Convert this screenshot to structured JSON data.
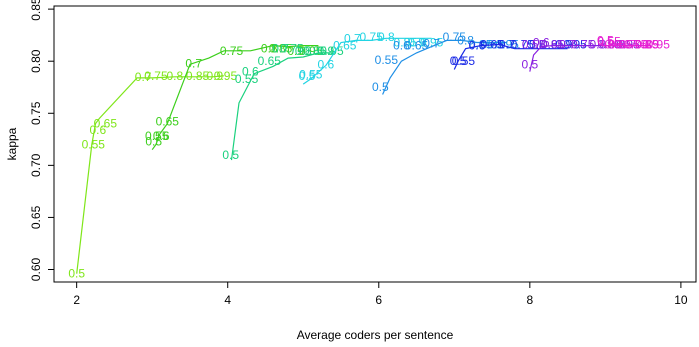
{
  "chart_data": {
    "type": "line",
    "title": "",
    "xlabel": "Average coders per sentence",
    "ylabel": "kappa",
    "xlim": [
      1.7,
      10.2
    ],
    "ylim": [
      0.588,
      0.853
    ],
    "xticks": [
      2,
      4,
      6,
      8,
      10
    ],
    "yticks": [
      0.6,
      0.65,
      0.7,
      0.75,
      0.8,
      0.85
    ],
    "grid": false,
    "legend": "none",
    "series": [
      {
        "color": "#7fe619",
        "points": [
          [
            2.0,
            0.596
          ],
          [
            2.2,
            0.72
          ],
          [
            2.25,
            0.74
          ],
          [
            2.3,
            0.745
          ],
          [
            2.8,
            0.784
          ],
          [
            3.0,
            0.784
          ],
          [
            3.3,
            0.785
          ],
          [
            3.6,
            0.785
          ],
          [
            3.8,
            0.785
          ],
          [
            3.95,
            0.786
          ]
        ],
        "labels": [
          [
            2.0,
            0.596,
            "0.5"
          ],
          [
            2.22,
            0.72,
            "0.55"
          ],
          [
            2.28,
            0.734,
            "0.6"
          ],
          [
            2.38,
            0.74,
            "0.65"
          ],
          [
            2.88,
            0.785,
            "0.7"
          ],
          [
            3.05,
            0.786,
            "0.75"
          ],
          [
            3.3,
            0.786,
            "0.8"
          ],
          [
            3.6,
            0.786,
            "0.85"
          ],
          [
            3.83,
            0.786,
            "0.9"
          ],
          [
            3.97,
            0.786,
            "0.95"
          ]
        ]
      },
      {
        "color": "#3ccf1c",
        "points": [
          [
            3.0,
            0.715
          ],
          [
            3.05,
            0.72
          ],
          [
            3.1,
            0.73
          ],
          [
            3.2,
            0.74
          ],
          [
            3.5,
            0.797
          ],
          [
            3.75,
            0.803
          ],
          [
            3.95,
            0.81
          ],
          [
            4.3,
            0.81
          ],
          [
            4.6,
            0.815
          ],
          [
            4.8,
            0.814
          ],
          [
            5.0,
            0.815
          ],
          [
            5.2,
            0.815
          ]
        ],
        "labels": [
          [
            3.02,
            0.723,
            "0.5"
          ],
          [
            3.06,
            0.728,
            "0.55"
          ],
          [
            3.12,
            0.728,
            "0.6"
          ],
          [
            3.2,
            0.742,
            "0.65"
          ],
          [
            3.55,
            0.798,
            "0.7"
          ],
          [
            4.05,
            0.81,
            "0.75"
          ],
          [
            4.55,
            0.812,
            "0.8"
          ],
          [
            4.7,
            0.812,
            "0.85"
          ],
          [
            4.9,
            0.81,
            "0.9"
          ],
          [
            5.1,
            0.81,
            "0.95"
          ]
        ]
      },
      {
        "color": "#1ad17e",
        "points": [
          [
            4.05,
            0.705
          ],
          [
            4.15,
            0.76
          ],
          [
            4.35,
            0.788
          ],
          [
            4.6,
            0.795
          ],
          [
            4.8,
            0.803
          ],
          [
            5.0,
            0.804
          ],
          [
            5.2,
            0.808
          ],
          [
            5.4,
            0.808
          ]
        ],
        "labels": [
          [
            4.04,
            0.71,
            "0.5"
          ],
          [
            4.25,
            0.783,
            "0.55"
          ],
          [
            4.3,
            0.79,
            "0.6"
          ],
          [
            4.55,
            0.8,
            "0.65"
          ],
          [
            4.7,
            0.812,
            "0.7"
          ],
          [
            4.85,
            0.812,
            "0.75"
          ],
          [
            5.0,
            0.81,
            "0.8"
          ],
          [
            5.15,
            0.81,
            "0.85"
          ],
          [
            5.3,
            0.81,
            "0.9"
          ],
          [
            5.38,
            0.81,
            "0.95"
          ]
        ]
      },
      {
        "color": "#22d4e3",
        "points": [
          [
            5.0,
            0.778
          ],
          [
            5.1,
            0.783
          ],
          [
            5.3,
            0.796
          ],
          [
            5.5,
            0.818
          ],
          [
            5.7,
            0.82
          ],
          [
            5.9,
            0.82
          ],
          [
            6.1,
            0.822
          ],
          [
            6.4,
            0.822
          ],
          [
            6.7,
            0.822
          ]
        ],
        "labels": [
          [
            5.05,
            0.786,
            "0.5"
          ],
          [
            5.1,
            0.787,
            "0.55"
          ],
          [
            5.3,
            0.797,
            "0.6"
          ],
          [
            5.55,
            0.815,
            "0.65"
          ],
          [
            5.65,
            0.822,
            "0.7"
          ],
          [
            5.9,
            0.823,
            "0.75"
          ],
          [
            6.1,
            0.823,
            "0.8"
          ],
          [
            6.35,
            0.818,
            "0.85"
          ],
          [
            6.5,
            0.818,
            "0.9"
          ],
          [
            6.7,
            0.818,
            "0.95"
          ]
        ]
      },
      {
        "color": "#1f8fe6",
        "points": [
          [
            6.05,
            0.768
          ],
          [
            6.15,
            0.784
          ],
          [
            6.3,
            0.8
          ],
          [
            6.5,
            0.808
          ],
          [
            6.7,
            0.814
          ],
          [
            6.9,
            0.82
          ],
          [
            7.1,
            0.82
          ],
          [
            7.3,
            0.818
          ],
          [
            7.5,
            0.818
          ],
          [
            7.7,
            0.818
          ]
        ],
        "labels": [
          [
            6.02,
            0.775,
            "0.5"
          ],
          [
            6.1,
            0.801,
            "0.55"
          ],
          [
            6.3,
            0.815,
            "0.6"
          ],
          [
            6.5,
            0.815,
            "0.65"
          ],
          [
            6.7,
            0.817,
            "0.7"
          ],
          [
            7.0,
            0.823,
            "0.75"
          ],
          [
            7.15,
            0.82,
            "0.8"
          ],
          [
            7.35,
            0.816,
            "0.85"
          ],
          [
            7.55,
            0.816,
            "0.9"
          ],
          [
            7.7,
            0.816,
            "0.95"
          ]
        ]
      },
      {
        "color": "#1a2ae6",
        "points": [
          [
            7.0,
            0.792
          ],
          [
            7.05,
            0.8
          ],
          [
            7.15,
            0.812
          ],
          [
            7.35,
            0.815
          ],
          [
            7.6,
            0.816
          ],
          [
            7.8,
            0.812
          ],
          [
            8.0,
            0.812
          ],
          [
            8.2,
            0.812
          ],
          [
            8.5,
            0.812
          ]
        ],
        "labels": [
          [
            7.05,
            0.8,
            "0.5"
          ],
          [
            7.12,
            0.8,
            "0.55"
          ],
          [
            7.3,
            0.815,
            "0.6"
          ],
          [
            7.5,
            0.816,
            "0.65"
          ],
          [
            7.7,
            0.816,
            "0.7"
          ],
          [
            7.9,
            0.816,
            "0.75"
          ],
          [
            8.1,
            0.816,
            "0.8"
          ],
          [
            8.3,
            0.816,
            "0.85"
          ],
          [
            8.45,
            0.816,
            "0.9"
          ],
          [
            8.6,
            0.816,
            "0.95"
          ]
        ]
      },
      {
        "color": "#8a1fe0",
        "points": [
          [
            8.0,
            0.79
          ],
          [
            8.05,
            0.806
          ],
          [
            8.15,
            0.814
          ],
          [
            8.3,
            0.815
          ],
          [
            8.5,
            0.815
          ],
          [
            8.8,
            0.815
          ],
          [
            9.1,
            0.815
          ],
          [
            9.3,
            0.815
          ]
        ],
        "labels": [
          [
            8.0,
            0.797,
            "0.5"
          ],
          [
            8.05,
            0.816,
            "0.55"
          ],
          [
            8.15,
            0.818,
            "0.6"
          ],
          [
            8.3,
            0.816,
            "0.65"
          ],
          [
            8.5,
            0.816,
            "0.7"
          ],
          [
            8.7,
            0.816,
            "0.75"
          ],
          [
            8.9,
            0.816,
            "0.8"
          ],
          [
            9.05,
            0.816,
            "0.85"
          ],
          [
            9.15,
            0.816,
            "0.9"
          ],
          [
            9.3,
            0.816,
            "0.95"
          ]
        ]
      },
      {
        "color": "#e61fd3",
        "points": [
          [
            8.95,
            0.815
          ],
          [
            9.0,
            0.815
          ],
          [
            9.2,
            0.815
          ],
          [
            9.4,
            0.815
          ],
          [
            9.6,
            0.815
          ]
        ],
        "labels": [
          [
            9.0,
            0.82,
            "0.5"
          ],
          [
            9.05,
            0.819,
            "0.55"
          ],
          [
            9.1,
            0.816,
            "0.6"
          ],
          [
            9.2,
            0.816,
            "0.65"
          ],
          [
            9.3,
            0.816,
            "0.7"
          ],
          [
            9.4,
            0.816,
            "0.75"
          ],
          [
            9.5,
            0.816,
            "0.8"
          ],
          [
            9.55,
            0.816,
            "0.85"
          ],
          [
            9.6,
            0.816,
            "0.9"
          ],
          [
            9.7,
            0.816,
            "0.95"
          ]
        ]
      }
    ]
  }
}
